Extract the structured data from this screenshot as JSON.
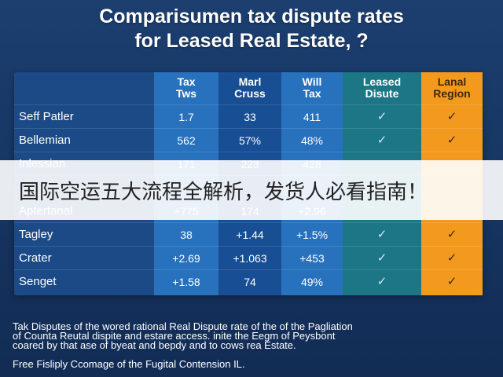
{
  "title": {
    "line1": "Comparisumen tax dispute rates",
    "line2": "for Leased Real Estate, ?"
  },
  "table": {
    "columns": [
      {
        "line1": "Tax",
        "line2": "Tws"
      },
      {
        "line1": "Marl",
        "line2": "Cruss"
      },
      {
        "line1": "Will",
        "line2": "Tax"
      },
      {
        "line1": "Leased",
        "line2": "Disute"
      },
      {
        "line1": "Lanal",
        "line2": "Region"
      }
    ],
    "rows": [
      {
        "label": "Seff Patler",
        "cells": [
          "1.7",
          "33",
          "411",
          "✓",
          "✓"
        ]
      },
      {
        "label": "Bellemian",
        "cells": [
          "562",
          "57%",
          "48%",
          "✓",
          "✓"
        ]
      },
      {
        "label": "Inlessian",
        "cells": [
          "171",
          "223",
          "428",
          "",
          ""
        ]
      },
      {
        "label": "",
        "cells": [
          "",
          "",
          "",
          "",
          ""
        ]
      },
      {
        "label": "Aptertanal",
        "cells": [
          "+775",
          "174",
          "+2.96",
          "",
          ""
        ]
      },
      {
        "label": "Tagley",
        "cells": [
          "38",
          "+1.44",
          "+1.5%",
          "✓",
          "✓"
        ]
      },
      {
        "label": "Crater",
        "cells": [
          "+2.69",
          "+1.063",
          "+453",
          "✓",
          "✓"
        ]
      },
      {
        "label": "Senget",
        "cells": [
          "+1.58",
          "74",
          "49%",
          "✓",
          "✓"
        ]
      }
    ]
  },
  "banner": {
    "text": "国际空运五大流程全解析，发货人必看指南！"
  },
  "footnote": {
    "line1": "Tak Disputes of the wored rational Real Dispute rate of the of the Pagliation",
    "line2": "of Countа Reutal dispite and estare access. inite the Eegm of Peysbont",
    "line3": "coared by that ase of byeat and bepdy and to cows rea Estate.",
    "line4": "Free Fisliply Ccomage of the Fugital Contension IL."
  },
  "colors": {
    "background": "#163562",
    "table": "#1b4a86",
    "header_dark": "#184f96",
    "tax_col": "#2a78c7",
    "leased_col": "#1d7e86",
    "region_col": "#f39a1e"
  },
  "chart_data": {
    "type": "table",
    "title": "Comparisumen tax dispute rates for Leased Real Estate, ?",
    "columns": [
      "Tax Tws",
      "Marl Cruss",
      "Will Tax",
      "Leased Disute",
      "Lanal Region"
    ],
    "rows": [
      {
        "name": "Seff Patler",
        "values": [
          "1.7",
          "33",
          "411",
          "✓",
          "✓"
        ]
      },
      {
        "name": "Bellemian",
        "values": [
          "562",
          "57%",
          "48%",
          "✓",
          "✓"
        ]
      },
      {
        "name": "Inlessian",
        "values": [
          "171",
          "223",
          "428",
          "",
          ""
        ]
      },
      {
        "name": "Aptertanal",
        "values": [
          "+775",
          "174",
          "+2.96",
          "",
          ""
        ]
      },
      {
        "name": "Tagley",
        "values": [
          "38",
          "+1.44",
          "+1.5%",
          "✓",
          "✓"
        ]
      },
      {
        "name": "Crater",
        "values": [
          "+2.69",
          "+1.063",
          "+453",
          "✓",
          "✓"
        ]
      },
      {
        "name": "Senget",
        "values": [
          "+1.58",
          "74",
          "49%",
          "✓",
          "✓"
        ]
      }
    ]
  }
}
